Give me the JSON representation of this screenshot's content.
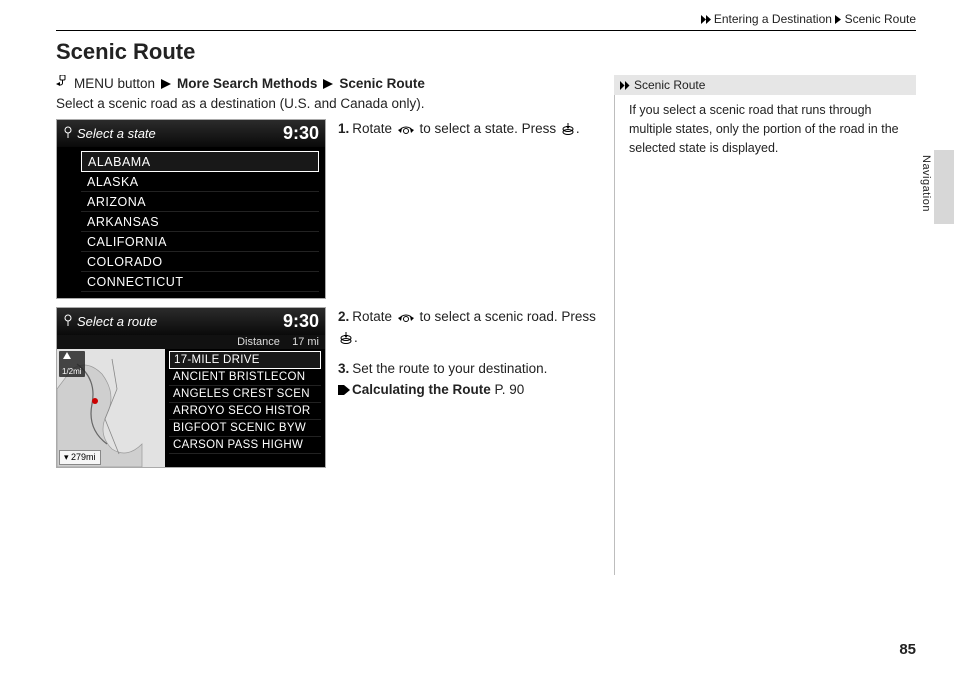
{
  "breadcrumb": {
    "seg1": "Entering a Destination",
    "seg2": "Scenic Route"
  },
  "page_title": "Scenic Route",
  "menu_line": {
    "prefix": "MENU button",
    "part2": "More Search Methods",
    "part3": "Scenic Route"
  },
  "subdesc": "Select a scenic road as a destination (U.S. and Canada only).",
  "screenshot1": {
    "header": "Select a state",
    "clock": "9:30",
    "items": [
      "ALABAMA",
      "ALASKA",
      "ARIZONA",
      "ARKANSAS",
      "CALIFORNIA",
      "COLORADO",
      "CONNECTICUT"
    ],
    "selected_index": 0
  },
  "screenshot2": {
    "header": "Select a route",
    "clock": "9:30",
    "distance_label": "Distance",
    "distance_value": "17 mi",
    "map_scale_top": "1/2mi",
    "map_scale_bottom": "279mi",
    "items": [
      "17-MILE DRIVE",
      "ANCIENT BRISTLECON",
      "ANGELES CREST SCEN",
      "ARROYO SECO HISTOR",
      "BIGFOOT SCENIC BYW",
      "CARSON PASS HIGHW"
    ],
    "selected_index": 0
  },
  "steps": {
    "s1a": "Rotate ",
    "s1b": " to select a state. Press ",
    "s1c": ".",
    "s2a": "Rotate ",
    "s2b": " to select a scenic road. Press ",
    "s2c": ".",
    "s3": "Set the route to your destination.",
    "xref_label": "Calculating the Route",
    "xref_page": "P. 90"
  },
  "sidebox": {
    "title": "Scenic Route",
    "body": "If you select a scenic road that runs through multiple states, only the portion of the road in the selected state is displayed."
  },
  "side_tab_label": "Navigation",
  "page_number": "85",
  "colors": {
    "screenshot_bg": "#000000",
    "screenshot_text": "#ffffff",
    "sidebox_head_bg": "#e6e6e6",
    "side_tab_bg": "#d7d7d7"
  }
}
